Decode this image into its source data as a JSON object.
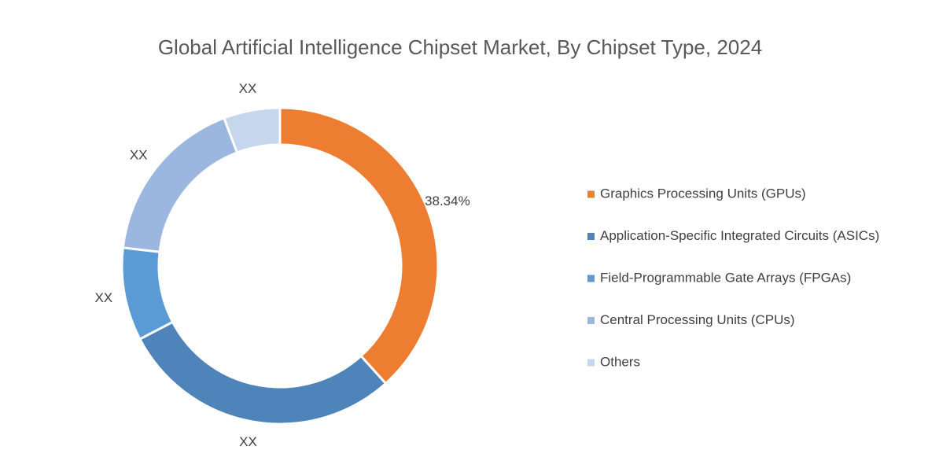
{
  "chart_data": {
    "type": "donut",
    "title": "Global Artificial Intelligence Chipset Market, By Chipset Type, 2024",
    "categories": [
      "Graphics Processing Units (GPUs)",
      "Application-Specific Integrated Circuits (ASICs)",
      "Field-Programmable Gate Arrays (FPGAs)",
      "Central Processing Units (CPUs)",
      "Others"
    ],
    "values": [
      38.34,
      29,
      9.5,
      17.4,
      5.76
    ],
    "value_labels": [
      "38.34%",
      "XX",
      "XX",
      "XX",
      "XX"
    ],
    "colors": [
      "#ed7d31",
      "#4f84ba",
      "#5b9bd5",
      "#9bb7df",
      "#c5d6ed"
    ],
    "legend": "right"
  }
}
